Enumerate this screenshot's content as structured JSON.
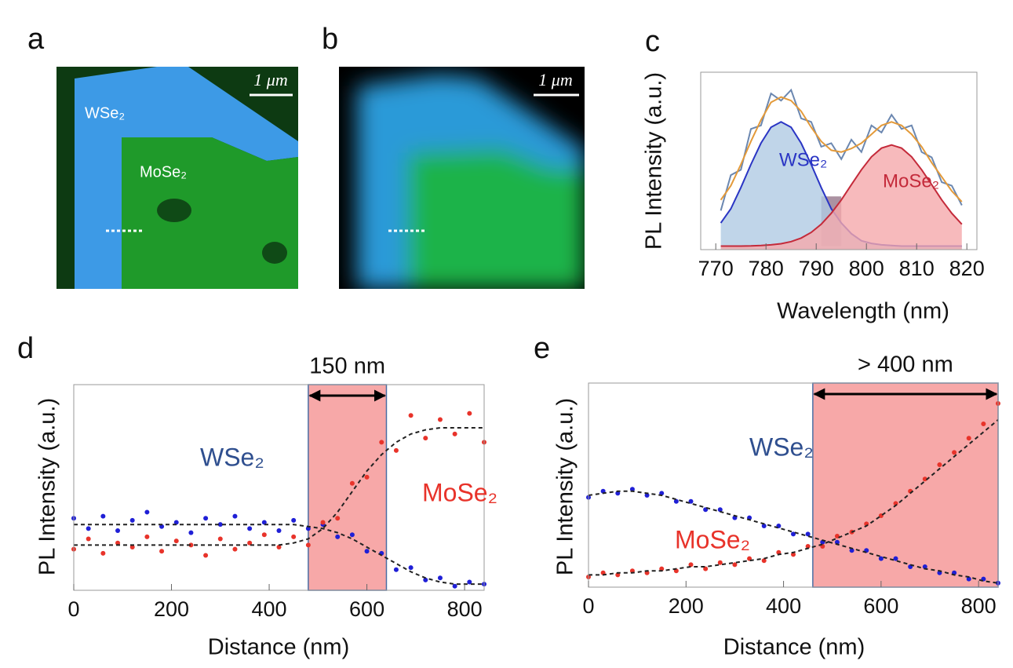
{
  "panel_labels": [
    "a",
    "b",
    "c",
    "d",
    "e"
  ],
  "images": [
    {
      "scale_bar": "1 μm",
      "labels": [
        "WSe₂",
        "MoSe₂"
      ]
    },
    {
      "scale_bar": "1 μm"
    }
  ],
  "chart_data": [
    {
      "type": "line",
      "xlabel": "Wavelength (nm)",
      "ylabel": "PL Intensity (a.u.)",
      "xlim": [
        767,
        822
      ],
      "ylim": [
        0,
        1
      ],
      "xticks": [
        770,
        780,
        790,
        800,
        810,
        820
      ],
      "x": [
        771,
        773,
        775,
        777,
        779,
        781,
        783,
        785,
        787,
        789,
        791,
        793,
        795,
        797,
        799,
        801,
        803,
        805,
        807,
        809,
        811,
        813,
        815,
        817,
        819
      ],
      "highlight": {
        "x": [
          791,
          795
        ],
        "y": [
          0.02,
          0.3
        ],
        "color": "#9c7f92"
      },
      "series": [
        {
          "color": "#6b87b0",
          "values": [
            0.22,
            0.42,
            0.45,
            0.68,
            0.7,
            0.88,
            0.84,
            0.9,
            0.74,
            0.72,
            0.58,
            0.6,
            0.51,
            0.62,
            0.55,
            0.7,
            0.66,
            0.76,
            0.68,
            0.7,
            0.55,
            0.52,
            0.38,
            0.36,
            0.25
          ]
        },
        {
          "color": "#e39a3a",
          "values": [
            0.28,
            0.36,
            0.48,
            0.61,
            0.73,
            0.83,
            0.86,
            0.84,
            0.78,
            0.69,
            0.61,
            0.56,
            0.55,
            0.57,
            0.6,
            0.65,
            0.7,
            0.72,
            0.7,
            0.65,
            0.58,
            0.49,
            0.41,
            0.33,
            0.27
          ]
        },
        {
          "name": "WSe₂",
          "color": "#2a35c4",
          "fill": "#b0cbe3",
          "values": [
            0.15,
            0.23,
            0.35,
            0.48,
            0.6,
            0.69,
            0.72,
            0.69,
            0.6,
            0.48,
            0.35,
            0.23,
            0.15,
            0.09,
            0.05,
            0.035,
            0.027,
            0.023,
            0.02,
            0.02,
            0.02,
            0.02,
            0.02,
            0.02,
            0.02
          ]
        },
        {
          "name": "MoSe₂",
          "color": "#c42a3a",
          "fill": "#f5a9ab",
          "values": [
            0.02,
            0.02,
            0.02,
            0.021,
            0.023,
            0.027,
            0.033,
            0.045,
            0.065,
            0.097,
            0.143,
            0.205,
            0.28,
            0.366,
            0.45,
            0.523,
            0.572,
            0.59,
            0.572,
            0.523,
            0.45,
            0.366,
            0.28,
            0.205,
            0.143
          ]
        }
      ]
    },
    {
      "type": "scatter",
      "xlabel": "Distance (nm)",
      "ylabel": "PL Intensity (a.u.)",
      "annotation": "150 nm",
      "xlim": [
        0,
        840
      ],
      "ylim": [
        0,
        1
      ],
      "xticks": [
        0,
        200,
        400,
        600,
        800
      ],
      "x": [
        0,
        30,
        60,
        90,
        120,
        150,
        180,
        210,
        240,
        270,
        300,
        330,
        360,
        390,
        420,
        450,
        480,
        510,
        540,
        570,
        600,
        630,
        660,
        690,
        720,
        750,
        780,
        810,
        840
      ],
      "highlight": {
        "x": [
          480,
          640
        ],
        "color": "#f7a8a8"
      },
      "series": [
        {
          "name": "WSe₂",
          "mode": "markers",
          "color": "#1f1fd6",
          "values": [
            0.35,
            0.3,
            0.36,
            0.29,
            0.34,
            0.38,
            0.31,
            0.33,
            0.28,
            0.35,
            0.32,
            0.36,
            0.3,
            0.33,
            0.29,
            0.34,
            0.3,
            0.32,
            0.26,
            0.27,
            0.19,
            0.18,
            0.1,
            0.11,
            0.05,
            0.06,
            0.02,
            0.04,
            0.03
          ]
        },
        {
          "name": "MoSe₂",
          "mode": "markers",
          "color": "#e8332a",
          "values": [
            0.2,
            0.25,
            0.18,
            0.23,
            0.21,
            0.26,
            0.19,
            0.24,
            0.22,
            0.17,
            0.25,
            0.2,
            0.23,
            0.27,
            0.21,
            0.26,
            0.22,
            0.33,
            0.35,
            0.52,
            0.55,
            0.72,
            0.68,
            0.85,
            0.74,
            0.83,
            0.76,
            0.86,
            0.72
          ]
        },
        {
          "mode": "dashed",
          "color": "#222222",
          "values": [
            0.32,
            0.32,
            0.32,
            0.32,
            0.32,
            0.32,
            0.32,
            0.32,
            0.32,
            0.32,
            0.32,
            0.32,
            0.32,
            0.32,
            0.32,
            0.32,
            0.31,
            0.3,
            0.28,
            0.25,
            0.21,
            0.17,
            0.13,
            0.09,
            0.06,
            0.04,
            0.03,
            0.03,
            0.03
          ]
        },
        {
          "mode": "dashed",
          "color": "#222222",
          "values": [
            0.22,
            0.22,
            0.22,
            0.22,
            0.22,
            0.22,
            0.22,
            0.22,
            0.22,
            0.22,
            0.22,
            0.22,
            0.22,
            0.22,
            0.22,
            0.23,
            0.25,
            0.3,
            0.38,
            0.48,
            0.58,
            0.66,
            0.72,
            0.76,
            0.78,
            0.79,
            0.79,
            0.79,
            0.79
          ]
        }
      ]
    },
    {
      "type": "scatter",
      "xlabel": "Distance (nm)",
      "ylabel": "PL Intensity (a.u.)",
      "annotation": "> 400 nm",
      "xlim": [
        0,
        840
      ],
      "ylim": [
        0,
        1
      ],
      "xticks": [
        0,
        200,
        400,
        600,
        800
      ],
      "x": [
        0,
        30,
        60,
        90,
        120,
        150,
        180,
        210,
        240,
        270,
        300,
        330,
        360,
        390,
        420,
        450,
        480,
        510,
        540,
        570,
        600,
        630,
        660,
        690,
        720,
        750,
        780,
        810,
        840
      ],
      "highlight": {
        "x": [
          460,
          840
        ],
        "color": "#f7a8a8"
      },
      "series": [
        {
          "name": "WSe₂",
          "mode": "markers",
          "color": "#1f1fd6",
          "values": [
            0.44,
            0.47,
            0.46,
            0.48,
            0.45,
            0.46,
            0.42,
            0.42,
            0.38,
            0.38,
            0.34,
            0.34,
            0.3,
            0.3,
            0.26,
            0.26,
            0.22,
            0.22,
            0.18,
            0.18,
            0.14,
            0.14,
            0.1,
            0.1,
            0.07,
            0.07,
            0.04,
            0.04,
            0.02
          ]
        },
        {
          "name": "MoSe₂",
          "mode": "markers",
          "color": "#e8332a",
          "values": [
            0.05,
            0.07,
            0.06,
            0.08,
            0.07,
            0.09,
            0.08,
            0.11,
            0.09,
            0.12,
            0.11,
            0.14,
            0.13,
            0.17,
            0.16,
            0.2,
            0.2,
            0.25,
            0.27,
            0.31,
            0.35,
            0.41,
            0.47,
            0.53,
            0.6,
            0.66,
            0.73,
            0.8,
            0.9
          ]
        },
        {
          "mode": "dashed",
          "color": "#222222",
          "values": [
            0.45,
            0.46,
            0.47,
            0.47,
            0.46,
            0.45,
            0.43,
            0.41,
            0.39,
            0.37,
            0.35,
            0.33,
            0.31,
            0.29,
            0.27,
            0.25,
            0.23,
            0.21,
            0.19,
            0.17,
            0.15,
            0.13,
            0.11,
            0.09,
            0.08,
            0.06,
            0.05,
            0.03,
            0.02
          ]
        },
        {
          "mode": "dashed",
          "color": "#222222",
          "values": [
            0.06,
            0.06,
            0.07,
            0.07,
            0.08,
            0.08,
            0.09,
            0.1,
            0.1,
            0.11,
            0.12,
            0.13,
            0.14,
            0.16,
            0.17,
            0.19,
            0.21,
            0.24,
            0.27,
            0.3,
            0.35,
            0.4,
            0.46,
            0.52,
            0.58,
            0.64,
            0.7,
            0.76,
            0.82
          ]
        }
      ]
    }
  ]
}
